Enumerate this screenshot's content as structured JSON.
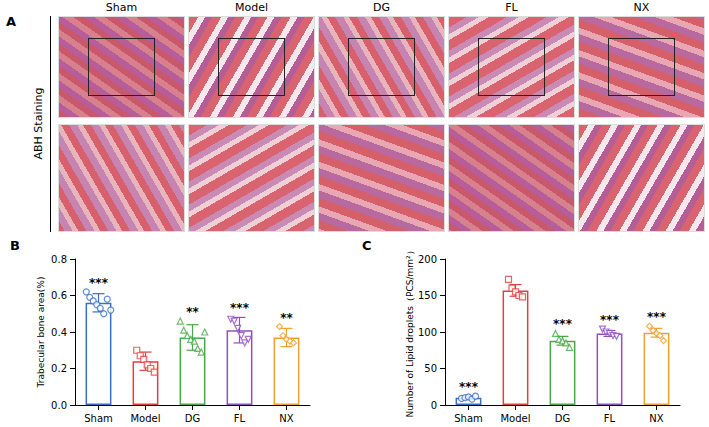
{
  "image_panel": {
    "panel": "A",
    "side_label": "ABH Staining",
    "columns": [
      "Sham",
      "Model",
      "DG",
      "FL",
      "NX"
    ]
  },
  "chart_data": [
    {
      "type": "bar",
      "panel": "B",
      "y_label": "Trabecular bone area(%)",
      "categories": [
        "Sham",
        "Model",
        "DG",
        "FL",
        "NX"
      ],
      "values": [
        0.56,
        0.24,
        0.37,
        0.41,
        0.37
      ],
      "errors": [
        0.05,
        0.05,
        0.07,
        0.07,
        0.05
      ],
      "points": [
        [
          0.62,
          0.59,
          0.57,
          0.55,
          0.53,
          0.5,
          0.58,
          0.52
        ],
        [
          0.3,
          0.27,
          0.25,
          0.22,
          0.2,
          0.18
        ],
        [
          0.46,
          0.41,
          0.38,
          0.36,
          0.35,
          0.31,
          0.29,
          0.4
        ],
        [
          0.47,
          0.46,
          0.42,
          0.38,
          0.34,
          0.36
        ],
        [
          0.43,
          0.38,
          0.36,
          0.35,
          0.34
        ]
      ],
      "annotations": [
        "***",
        null,
        "**",
        "***",
        "**"
      ],
      "colors": [
        "#3a6fc4",
        "#e04040",
        "#4aa84a",
        "#9050c0",
        "#f0a030"
      ],
      "ylim": [
        0,
        0.8
      ],
      "yticks": [
        {
          "value": 0,
          "label": "0.0"
        },
        0.2,
        0.4,
        0.6,
        0.8
      ],
      "grid": false
    },
    {
      "type": "bar",
      "panel": "C",
      "y_label": "Number of Lipid droplets（PCS/mm²）",
      "categories": [
        "Sham",
        "Model",
        "DG",
        "FL",
        "NX"
      ],
      "values": [
        10,
        157,
        88,
        98,
        99
      ],
      "errors": [
        2,
        8,
        6,
        4,
        6
      ],
      "points": [
        [
          9,
          10,
          11,
          8,
          12
        ],
        [
          172,
          160,
          155,
          150,
          148
        ],
        [
          98,
          90,
          88,
          85,
          79
        ],
        [
          104,
          100,
          98,
          95,
          94
        ],
        [
          108,
          102,
          98,
          95,
          88
        ]
      ],
      "annotations": [
        "***",
        null,
        "***",
        "***",
        "***"
      ],
      "colors": [
        "#3a6fc4",
        "#e04040",
        "#4aa84a",
        "#9050c0",
        "#f0a030"
      ],
      "ylim": [
        0,
        200
      ],
      "yticks": [
        0,
        50,
        100,
        150,
        200
      ],
      "grid": false
    }
  ]
}
